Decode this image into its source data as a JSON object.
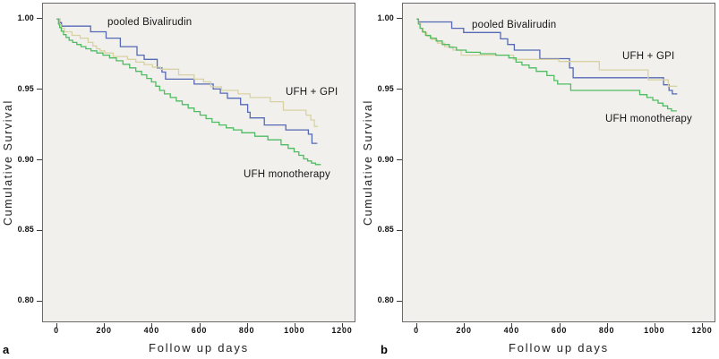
{
  "chart_data": [
    {
      "type": "line",
      "subtype": "kaplan-meier-step",
      "panel_label": "a",
      "xlabel": "Follow up days",
      "ylabel": "Cumulative Survival",
      "x_ticks": [
        0,
        200,
        400,
        600,
        800,
        1000,
        1200
      ],
      "y_ticks": [
        "1.00",
        "0.95",
        "0.90",
        "0.85",
        "0.80"
      ],
      "xlim": [
        -60,
        1249
      ],
      "ylim": [
        0.7859,
        1.011
      ],
      "grid": false,
      "legend_position": "inline-annotations",
      "plot_bg": "#f1f0ed",
      "series": [
        {
          "name": "pooled Bivalirudin",
          "label": "pooled Bivalirudin",
          "color": "#5569b4",
          "points": [
            [
              0,
              1.0
            ],
            [
              10,
              0.9975
            ],
            [
              18,
              0.995
            ],
            [
              140,
              0.991
            ],
            [
              205,
              0.9865
            ],
            [
              265,
              0.9805
            ],
            [
              335,
              0.9745
            ],
            [
              365,
              0.9715
            ],
            [
              420,
              0.9655
            ],
            [
              440,
              0.9625
            ],
            [
              455,
              0.9575
            ],
            [
              575,
              0.954
            ],
            [
              655,
              0.9505
            ],
            [
              685,
              0.9475
            ],
            [
              715,
              0.944
            ],
            [
              770,
              0.9395
            ],
            [
              800,
              0.934
            ],
            [
              810,
              0.93
            ],
            [
              870,
              0.925
            ],
            [
              960,
              0.9215
            ],
            [
              1055,
              0.9185
            ],
            [
              1070,
              0.912
            ],
            [
              1090,
              0.912
            ]
          ]
        },
        {
          "name": "UFH + GPI",
          "label": "UFH + GPI",
          "color": "#d8d2a2",
          "points": [
            [
              0,
              1.0
            ],
            [
              8,
              0.996
            ],
            [
              16,
              0.9935
            ],
            [
              30,
              0.991
            ],
            [
              62,
              0.9885
            ],
            [
              96,
              0.9865
            ],
            [
              130,
              0.9835
            ],
            [
              150,
              0.981
            ],
            [
              165,
              0.979
            ],
            [
              180,
              0.9775
            ],
            [
              200,
              0.976
            ],
            [
              235,
              0.9735
            ],
            [
              295,
              0.9715
            ],
            [
              330,
              0.9695
            ],
            [
              365,
              0.9678
            ],
            [
              400,
              0.966
            ],
            [
              435,
              0.9645
            ],
            [
              510,
              0.9605
            ],
            [
              575,
              0.9575
            ],
            [
              615,
              0.9555
            ],
            [
              645,
              0.952
            ],
            [
              690,
              0.9495
            ],
            [
              760,
              0.947
            ],
            [
              810,
              0.9445
            ],
            [
              895,
              0.9415
            ],
            [
              950,
              0.9355
            ],
            [
              1045,
              0.932
            ],
            [
              1065,
              0.9285
            ],
            [
              1080,
              0.924
            ],
            [
              1092,
              0.924
            ]
          ]
        },
        {
          "name": "UFH monotherapy",
          "label": "UFH monotherapy",
          "color": "#4fbc62",
          "points": [
            [
              0,
              1.0
            ],
            [
              5,
              0.9965
            ],
            [
              10,
              0.994
            ],
            [
              17,
              0.9915
            ],
            [
              26,
              0.989
            ],
            [
              37,
              0.987
            ],
            [
              50,
              0.985
            ],
            [
              65,
              0.9835
            ],
            [
              82,
              0.982
            ],
            [
              100,
              0.9805
            ],
            [
              120,
              0.979
            ],
            [
              142,
              0.9775
            ],
            [
              166,
              0.976
            ],
            [
              192,
              0.9745
            ],
            [
              220,
              0.9725
            ],
            [
              248,
              0.9705
            ],
            [
              276,
              0.968
            ],
            [
              304,
              0.9655
            ],
            [
              330,
              0.963
            ],
            [
              354,
              0.9605
            ],
            [
              376,
              0.958
            ],
            [
              396,
              0.9555
            ],
            [
              414,
              0.9525
            ],
            [
              430,
              0.9495
            ],
            [
              450,
              0.947
            ],
            [
              475,
              0.9445
            ],
            [
              500,
              0.942
            ],
            [
              525,
              0.9395
            ],
            [
              550,
              0.937
            ],
            [
              575,
              0.9345
            ],
            [
              600,
              0.932
            ],
            [
              625,
              0.9295
            ],
            [
              650,
              0.927
            ],
            [
              680,
              0.925
            ],
            [
              710,
              0.923
            ],
            [
              740,
              0.9215
            ],
            [
              775,
              0.9195
            ],
            [
              830,
              0.917
            ],
            [
              885,
              0.9145
            ],
            [
              940,
              0.911
            ],
            [
              970,
              0.9085
            ],
            [
              995,
              0.906
            ],
            [
              1015,
              0.9035
            ],
            [
              1035,
              0.901
            ],
            [
              1052,
              0.8995
            ],
            [
              1068,
              0.898
            ],
            [
              1085,
              0.897
            ],
            [
              1105,
              0.897
            ]
          ]
        }
      ]
    },
    {
      "type": "line",
      "subtype": "kaplan-meier-step",
      "panel_label": "b",
      "xlabel": "Follow up days",
      "ylabel": "Cumulative Survival",
      "x_ticks": [
        0,
        200,
        400,
        600,
        800,
        1000,
        1200
      ],
      "y_ticks": [
        "1.00",
        "0.95",
        "0.90",
        "0.85",
        "0.80"
      ],
      "xlim": [
        -60,
        1249
      ],
      "ylim": [
        0.7859,
        1.011
      ],
      "grid": false,
      "legend_position": "inline-annotations",
      "plot_bg": "#f1f0ed",
      "series": [
        {
          "name": "pooled Bivalirudin",
          "label": "pooled Bivalirudin",
          "color": "#5569b4",
          "points": [
            [
              0,
              1.0
            ],
            [
              5,
              0.998
            ],
            [
              145,
              0.9935
            ],
            [
              195,
              0.9905
            ],
            [
              350,
              0.986
            ],
            [
              380,
              0.982
            ],
            [
              408,
              0.978
            ],
            [
              515,
              0.972
            ],
            [
              640,
              0.9655
            ],
            [
              655,
              0.9585
            ],
            [
              1035,
              0.9535
            ],
            [
              1058,
              0.9495
            ],
            [
              1072,
              0.947
            ],
            [
              1090,
              0.947
            ]
          ]
        },
        {
          "name": "UFH + GPI",
          "label": "UFH + GPI",
          "color": "#d8d2a2",
          "points": [
            [
              0,
              1.0
            ],
            [
              6,
              0.997
            ],
            [
              14,
              0.9935
            ],
            [
              25,
              0.9905
            ],
            [
              40,
              0.988
            ],
            [
              60,
              0.9855
            ],
            [
              85,
              0.983
            ],
            [
              115,
              0.9805
            ],
            [
              150,
              0.978
            ],
            [
              185,
              0.9745
            ],
            [
              405,
              0.9715
            ],
            [
              595,
              0.97
            ],
            [
              765,
              0.964
            ],
            [
              970,
              0.957
            ],
            [
              1055,
              0.9525
            ],
            [
              1090,
              0.9525
            ]
          ]
        },
        {
          "name": "UFH monotherapy",
          "label": "UFH monotherapy",
          "color": "#4fbc62",
          "points": [
            [
              0,
              1.0
            ],
            [
              5,
              0.9965
            ],
            [
              12,
              0.9935
            ],
            [
              22,
              0.991
            ],
            [
              35,
              0.9885
            ],
            [
              55,
              0.9865
            ],
            [
              80,
              0.9845
            ],
            [
              105,
              0.982
            ],
            [
              135,
              0.98
            ],
            [
              165,
              0.978
            ],
            [
              205,
              0.9765
            ],
            [
              265,
              0.9755
            ],
            [
              330,
              0.9745
            ],
            [
              385,
              0.9725
            ],
            [
              415,
              0.9695
            ],
            [
              440,
              0.9675
            ],
            [
              470,
              0.9655
            ],
            [
              500,
              0.963
            ],
            [
              545,
              0.96
            ],
            [
              575,
              0.9565
            ],
            [
              590,
              0.954
            ],
            [
              645,
              0.9495
            ],
            [
              935,
              0.9465
            ],
            [
              965,
              0.9445
            ],
            [
              990,
              0.9425
            ],
            [
              1012,
              0.9405
            ],
            [
              1032,
              0.9385
            ],
            [
              1052,
              0.9365
            ],
            [
              1068,
              0.935
            ],
            [
              1088,
              0.935
            ]
          ]
        }
      ]
    }
  ]
}
